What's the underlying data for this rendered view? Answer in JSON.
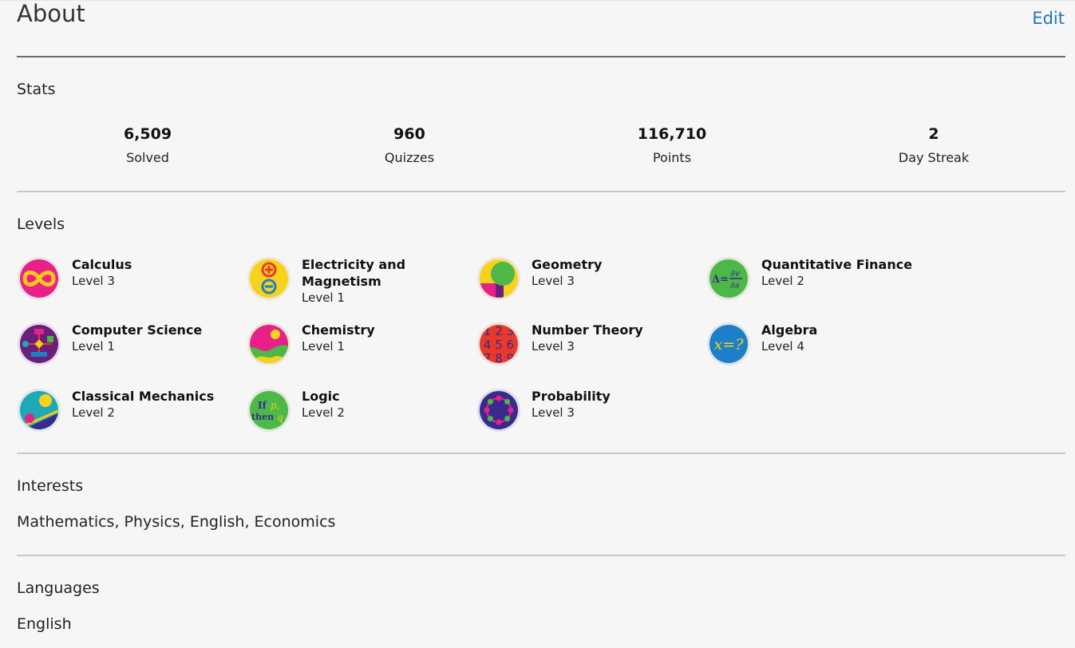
{
  "header": {
    "title": "About",
    "edit_label": "Edit"
  },
  "stats": {
    "title": "Stats",
    "items": [
      {
        "value": "6,509",
        "label": "Solved"
      },
      {
        "value": "960",
        "label": "Quizzes"
      },
      {
        "value": "116,710",
        "label": "Points"
      },
      {
        "value": "2",
        "label": "Day Streak"
      }
    ]
  },
  "levels": {
    "title": "Levels",
    "items": [
      {
        "name": "Calculus",
        "level": "Level 3",
        "icon": "infinity-icon"
      },
      {
        "name": "Electricity and Magnetism",
        "level": "Level 1",
        "icon": "plus-minus-icon"
      },
      {
        "name": "Geometry",
        "level": "Level 3",
        "icon": "geometry-shapes-icon"
      },
      {
        "name": "Quantitative Finance",
        "level": "Level 2",
        "icon": "delta-partial-icon"
      },
      {
        "name": "Computer Science",
        "level": "Level 1",
        "icon": "flowchart-icon"
      },
      {
        "name": "Chemistry",
        "level": "Level 1",
        "icon": "chemistry-blob-icon"
      },
      {
        "name": "Number Theory",
        "level": "Level 3",
        "icon": "numbers-icon"
      },
      {
        "name": "Algebra",
        "level": "Level 4",
        "icon": "x-equals-icon"
      },
      {
        "name": "Classical Mechanics",
        "level": "Level 2",
        "icon": "ramp-ball-icon"
      },
      {
        "name": "Logic",
        "level": "Level 2",
        "icon": "if-then-icon"
      },
      {
        "name": "Probability",
        "level": "Level 3",
        "icon": "dots-circle-icon"
      }
    ]
  },
  "interests": {
    "title": "Interests",
    "value": "Mathematics, Physics, English, Economics"
  },
  "languages": {
    "title": "Languages",
    "value": "English"
  },
  "icon_text": {
    "algebra": "x=?",
    "logic_if": "If",
    "logic_p": "p,",
    "logic_then": "then",
    "logic_q": "q",
    "finance_delta": "Δ=",
    "finance_dv": "∂v",
    "finance_ds": "∂s",
    "numbers_row1": "1 2 3",
    "numbers_row2": "4 5 6",
    "numbers_row3": "7 8 9"
  },
  "colors": {
    "accent": "#1f78b4",
    "calculus_bg": "#e8208a",
    "calculus_fg": "#f7c816",
    "em_bg": "#f7d21a",
    "geometry_bg": "#7a2c86",
    "finance_bg": "#4cb848",
    "cs_bg": "#6a1f7a",
    "chem_bg": "#e8208a",
    "numbers_bg": "#e8392a",
    "algebra_bg": "#1d7fc8",
    "mechanics_bg": "#1fa9b7",
    "logic_bg": "#4cb848",
    "probability_bg": "#3a2a8e"
  }
}
